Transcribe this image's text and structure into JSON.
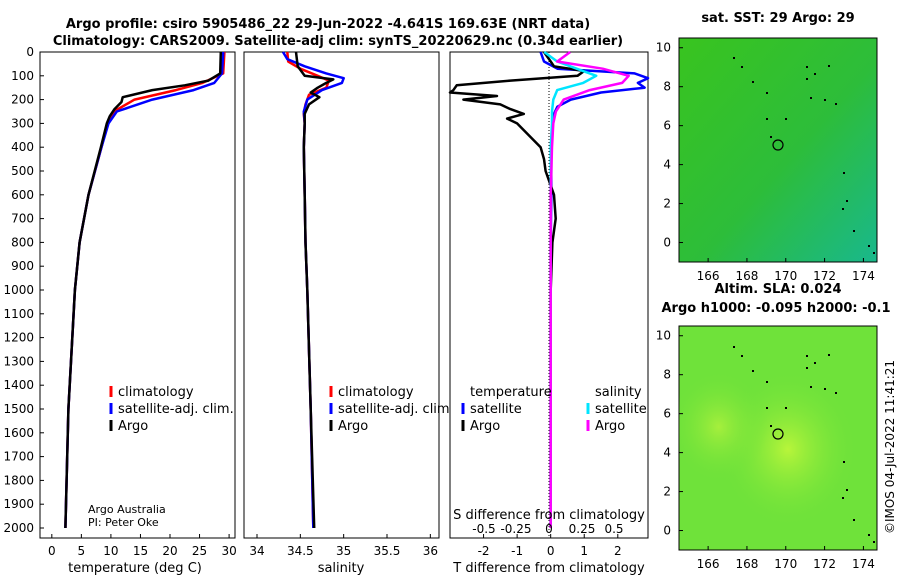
{
  "header": {
    "title_line1": "Argo profile: csiro 5905486_22 29-Jun-2022 -4.641S 169.63E (NRT data)",
    "title_line2": "Climatology: CARS2009. Satellite-adj clim: synTS_20220629.nc (0.34d earlier)"
  },
  "colors": {
    "climatology": "#ff0000",
    "satellite_adj": "#0000ff",
    "argo": "#000000",
    "s_satellite": "#00e5ff",
    "s_argo": "#ff00ff"
  },
  "depth_axis": {
    "ylim": [
      0,
      2050
    ],
    "ticks": [
      "0",
      "100",
      "200",
      "300",
      "400",
      "500",
      "600",
      "700",
      "800",
      "900",
      "1000",
      "1100",
      "1200",
      "1300",
      "1400",
      "1500",
      "1600",
      "1700",
      "1800",
      "1900",
      "2000"
    ]
  },
  "chart_data": [
    {
      "type": "line",
      "id": "temperature",
      "xlabel": "temperature (deg C)",
      "xlim": [
        -2,
        31
      ],
      "xticks": [
        "0",
        "5",
        "10",
        "15",
        "20",
        "25",
        "30"
      ],
      "legend": [
        "climatology",
        "satellite-adj. clim.",
        "Argo"
      ],
      "credit": [
        "Argo Australia",
        "PI: Peter Oke"
      ],
      "series": [
        {
          "name": "climatology",
          "color": "#ff0000",
          "depth": [
            0,
            90,
            130,
            160,
            200,
            250,
            300,
            400,
            600,
            800,
            1000,
            1500,
            2000
          ],
          "values": [
            29.2,
            29.0,
            25.5,
            21,
            14,
            10.5,
            9.4,
            8.4,
            6.2,
            4.7,
            3.9,
            2.8,
            2.3
          ]
        },
        {
          "name": "satellite-adj. clim.",
          "color": "#0000ff",
          "depth": [
            0,
            90,
            130,
            160,
            200,
            250,
            300,
            400,
            600,
            800,
            1000,
            1500,
            2000
          ],
          "values": [
            29.0,
            28.8,
            27.5,
            24,
            17,
            11,
            9.6,
            8.4,
            6.2,
            4.7,
            3.9,
            2.8,
            2.3
          ]
        },
        {
          "name": "Argo",
          "color": "#000000",
          "depth": [
            0,
            90,
            120,
            140,
            160,
            190,
            210,
            240,
            270,
            300,
            400,
            600,
            800,
            1000,
            1500,
            2000
          ],
          "values": [
            28.6,
            28.5,
            26.5,
            22.5,
            17,
            12,
            11.8,
            10.6,
            9.8,
            9.3,
            8.3,
            6.2,
            4.7,
            3.9,
            2.8,
            2.3
          ]
        }
      ]
    },
    {
      "type": "line",
      "id": "salinity",
      "xlabel": "salinity",
      "xlim": [
        33.85,
        36.1
      ],
      "xticks": [
        "34",
        "34.5",
        "35",
        "35.5",
        "36"
      ],
      "legend": [
        "climatology",
        "satellite-adj. clim.",
        "Argo"
      ],
      "series": [
        {
          "name": "climatology",
          "color": "#ff0000",
          "depth": [
            0,
            40,
            70,
            100,
            120,
            150,
            180,
            220,
            260,
            300,
            400,
            600,
            800,
            1000,
            1500,
            2000
          ],
          "values": [
            34.35,
            34.36,
            34.5,
            34.7,
            34.83,
            34.8,
            34.6,
            34.56,
            34.54,
            34.55,
            34.54,
            34.55,
            34.56,
            34.58,
            34.62,
            34.65
          ]
        },
        {
          "name": "satellite-adj. clim.",
          "color": "#0000ff",
          "depth": [
            0,
            30,
            60,
            90,
            110,
            130,
            160,
            200,
            250,
            300,
            400,
            600,
            800,
            1000,
            1500,
            2000
          ],
          "values": [
            34.3,
            34.35,
            34.55,
            34.8,
            35.0,
            34.98,
            34.75,
            34.58,
            34.54,
            34.55,
            34.54,
            34.55,
            34.56,
            34.58,
            34.62,
            34.65
          ]
        },
        {
          "name": "Argo",
          "color": "#000000",
          "depth": [
            0,
            60,
            100,
            115,
            130,
            150,
            170,
            190,
            220,
            260,
            300,
            400,
            600,
            800,
            1000,
            1500,
            2000
          ],
          "values": [
            34.45,
            34.47,
            34.55,
            34.88,
            34.8,
            34.7,
            34.62,
            34.72,
            34.6,
            34.55,
            34.55,
            34.54,
            34.55,
            34.56,
            34.58,
            34.62,
            34.66
          ]
        }
      ]
    },
    {
      "type": "line",
      "id": "difference",
      "xlabel": "T difference from climatology",
      "xlim": [
        -3.0,
        2.9
      ],
      "xticks": [
        "-2",
        "-1",
        "0",
        "1",
        "2"
      ],
      "s_axis_label": "S difference from climatology",
      "s_xticks": [
        "-0.5",
        "-0.25",
        "0",
        "0.25",
        "0.5"
      ],
      "legend_titles": [
        "temperature",
        "salinity"
      ],
      "legend": [
        "satellite",
        "Argo",
        "satellite",
        "Argo"
      ],
      "series": [
        {
          "name": "T satellite",
          "color": "#0000ff",
          "depth": [
            0,
            40,
            70,
            90,
            110,
            130,
            150,
            170,
            200,
            230,
            260,
            300,
            400,
            600,
            800,
            1000,
            1500,
            2000
          ],
          "values": [
            -0.3,
            -0.2,
            0.2,
            2.5,
            2.9,
            2.6,
            2.8,
            1.5,
            0.6,
            0.2,
            0.1,
            0.05,
            0.02,
            0.02,
            0.0,
            0.0,
            0.0,
            0.0
          ]
        },
        {
          "name": "T Argo",
          "color": "#000000",
          "depth": [
            0,
            40,
            60,
            80,
            100,
            120,
            140,
            160,
            170,
            185,
            200,
            220,
            240,
            260,
            280,
            300,
            400,
            450,
            500,
            600,
            700,
            800,
            1000,
            1500,
            2000
          ],
          "values": [
            -0.2,
            0,
            0.1,
            1.0,
            0.8,
            -1.2,
            -2.8,
            -2.9,
            -3.0,
            -1.6,
            -2.6,
            -1.5,
            -1.2,
            -0.8,
            -1.3,
            -1.0,
            -0.3,
            -0.2,
            -0.15,
            0.1,
            0.15,
            0.05,
            0.0,
            0.0,
            0.0
          ]
        },
        {
          "name": "S satellite",
          "color": "#00e5ff",
          "depth": [
            0,
            40,
            70,
            100,
            130,
            160,
            200,
            250,
            300,
            400,
            600,
            800,
            1000,
            1500,
            2000
          ],
          "values": [
            -0.05,
            0.05,
            0.2,
            0.35,
            0.25,
            0.05,
            0.02,
            0.01,
            0.01,
            0.0,
            0.0,
            0.0,
            0.0,
            0.0,
            0.0
          ]
        },
        {
          "name": "S Argo",
          "color": "#ff00ff",
          "depth": [
            0,
            40,
            70,
            100,
            130,
            160,
            200,
            250,
            300,
            400,
            600,
            800,
            1000,
            1500,
            2000
          ],
          "values": [
            0.15,
            0.05,
            0.4,
            0.6,
            0.55,
            0.3,
            0.1,
            0.04,
            0.02,
            0.01,
            0.0,
            0.0,
            0.0,
            0.0,
            0.0
          ]
        }
      ]
    },
    {
      "type": "heatmap",
      "id": "sst_map",
      "title": "sat. SST: 29 Argo: 29",
      "xlim": [
        164.5,
        174.7
      ],
      "ylim": [
        -1.0,
        10.5
      ],
      "xticks": [
        "166",
        "168",
        "170",
        "172",
        "174"
      ],
      "yticks": [
        "0",
        "2",
        "4",
        "6",
        "8",
        "10"
      ],
      "marker": {
        "lon": 169.63,
        "lat": 4.641
      }
    },
    {
      "type": "heatmap",
      "id": "sla_map",
      "title": "Altim. SLA: 0.024",
      "subtitle": "Argo h1000: -0.095 h2000: -0.1",
      "xlim": [
        164.5,
        174.7
      ],
      "ylim": [
        -1.0,
        10.5
      ],
      "xticks": [
        "166",
        "168",
        "170",
        "172",
        "174"
      ],
      "yticks": [
        "0",
        "2",
        "4",
        "6",
        "8",
        "10"
      ],
      "marker": {
        "lon": 169.63,
        "lat": 4.641
      }
    }
  ],
  "footer": {
    "stamp": "©IMOS 04-Jul-2022 11:41:21"
  }
}
